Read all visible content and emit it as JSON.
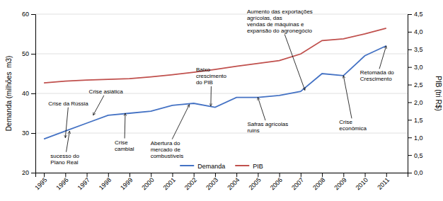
{
  "chart_data": {
    "type": "line",
    "x": [
      1995,
      1996,
      1997,
      1998,
      1999,
      2000,
      2001,
      2002,
      2003,
      2004,
      2005,
      2006,
      2007,
      2008,
      2009,
      2010,
      2011
    ],
    "xlim": [
      1994.6,
      2012.0
    ],
    "xticks": [
      1995,
      1996,
      1997,
      1998,
      1999,
      2000,
      2001,
      2002,
      2003,
      2004,
      2005,
      2006,
      2007,
      2008,
      2009,
      2010,
      2011
    ],
    "ylabel": "Demanda (milhões  m3)",
    "y2label": "PIB (tri R$)",
    "ylim": [
      20,
      60
    ],
    "yticks": [
      20,
      30,
      40,
      50,
      60
    ],
    "y2lim": [
      0.0,
      4.5
    ],
    "y2ticks": [
      {
        "value": 0.0,
        "label": "0,0"
      },
      {
        "value": 0.5,
        "label": "0,5"
      },
      {
        "value": 1.0,
        "label": "1,0"
      },
      {
        "value": 1.5,
        "label": "1,5"
      },
      {
        "value": 2.0,
        "label": "2,0"
      },
      {
        "value": 2.5,
        "label": "2,5"
      },
      {
        "value": 3.0,
        "label": "3,0"
      },
      {
        "value": 3.5,
        "label": "3,5"
      },
      {
        "value": 4.0,
        "label": "4,0"
      },
      {
        "value": 4.5,
        "label": "4,5"
      }
    ],
    "grid": true,
    "legend": "bottom",
    "series": [
      {
        "name": "Demanda",
        "color": "#4472C4",
        "values": [
          28.5,
          30.5,
          32.5,
          34.5,
          35.0,
          35.5,
          37.0,
          37.5,
          36.5,
          39.0,
          39.0,
          39.5,
          40.5,
          45.0,
          44.5,
          49.5,
          52.0
        ]
      },
      {
        "name": "PIB",
        "color": "#C0504D",
        "axis": "y2",
        "values": [
          2.55,
          2.6,
          2.63,
          2.65,
          2.67,
          2.72,
          2.78,
          2.85,
          2.93,
          3.02,
          3.1,
          3.18,
          3.37,
          3.75,
          3.8,
          3.94,
          4.1
        ]
      }
    ],
    "annotations": [
      {
        "text": "Crise da Rússia",
        "x": 1996.0,
        "y": 28.8
      },
      {
        "text": "sucesso do\nPlano Real",
        "x": 1996.2,
        "y": 30.5
      },
      {
        "text": "Crise asiática",
        "x": 1997.3,
        "y": 34.5
      },
      {
        "text": "Crise\ncambial",
        "x": 1998.8,
        "y": 35.0
      },
      {
        "text": "Abertura do\nmercado de\ncombustíveis",
        "x": 2001.8,
        "y": 37.2
      },
      {
        "text": "Baixo\ncrescimento\ndo PIB",
        "x": 2002.8,
        "y": 36.8
      },
      {
        "text": "Safras agrícolas\nruins",
        "x": 2005.0,
        "y": 39.0
      },
      {
        "text": "Aumento das exportações\nagrícolas, das\nvendas de máquinas e\nexpansão do agronegócio",
        "x": 2007.2,
        "y": 40.8
      },
      {
        "text": "Crise\neconômica",
        "x": 2009.0,
        "y": 44.5
      },
      {
        "text": "Retomada do\nCrescimento",
        "x": 2011.0,
        "y": 52.0
      }
    ]
  }
}
